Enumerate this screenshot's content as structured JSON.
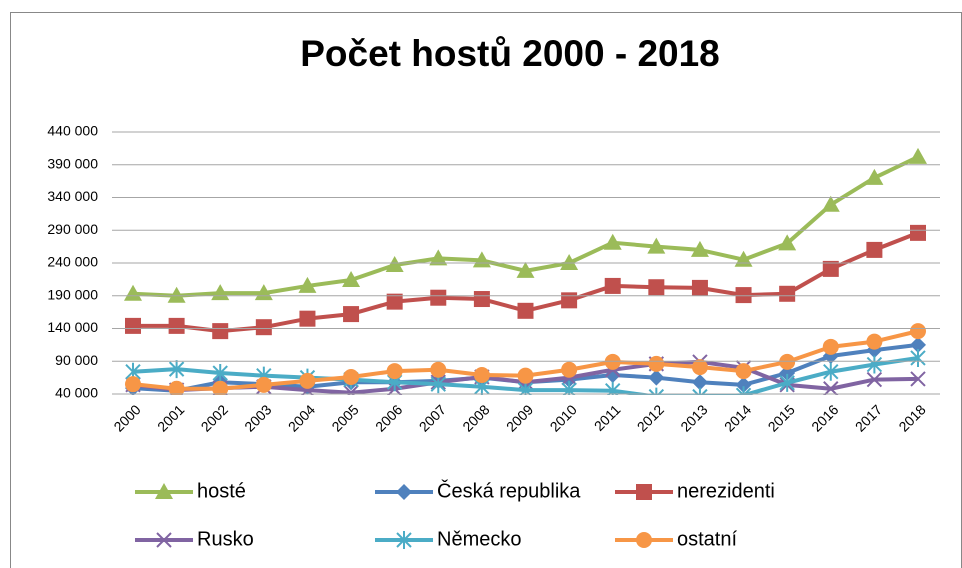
{
  "chart_data": {
    "type": "line",
    "title": "Počet hostů 2000 - 2018",
    "categories": [
      "2000",
      "2001",
      "2002",
      "2003",
      "2004",
      "2005",
      "2006",
      "2007",
      "2008",
      "2009",
      "2010",
      "2011",
      "2012",
      "2013",
      "2014",
      "2015",
      "2016",
      "2017",
      "2018"
    ],
    "ylim": [
      40000,
      440000
    ],
    "yticks": [
      {
        "value": 40000,
        "label": "40 000"
      },
      {
        "value": 90000,
        "label": "90 000"
      },
      {
        "value": 140000,
        "label": "140 000"
      },
      {
        "value": 190000,
        "label": "190 000"
      },
      {
        "value": 240000,
        "label": "240 000"
      },
      {
        "value": 290000,
        "label": "290 000"
      },
      {
        "value": 340000,
        "label": "340 000"
      },
      {
        "value": 390000,
        "label": "390 000"
      },
      {
        "value": 440000,
        "label": "440 000"
      }
    ],
    "grid": true,
    "legend": "bottom",
    "series": [
      {
        "name": "hosté",
        "color": "#9bbb59",
        "marker": "triangle",
        "values": [
          193000,
          190000,
          194000,
          194000,
          205000,
          214000,
          237000,
          247000,
          244000,
          228000,
          240000,
          271000,
          265000,
          260000,
          245000,
          270000,
          329000,
          370000,
          402000
        ]
      },
      {
        "name": "Česká republika",
        "color": "#4f81bd",
        "marker": "diamond",
        "values": [
          49000,
          45000,
          58000,
          55000,
          51000,
          58000,
          58000,
          60000,
          65000,
          58000,
          62000,
          69000,
          65000,
          58000,
          54000,
          72000,
          98000,
          107000,
          115000
        ]
      },
      {
        "name": "nerezidenti",
        "color": "#c0504d",
        "marker": "square",
        "values": [
          144000,
          144000,
          136000,
          142000,
          155000,
          162000,
          181000,
          187000,
          185000,
          167000,
          183000,
          205000,
          203000,
          202000,
          191000,
          193000,
          231000,
          260000,
          286000
        ]
      },
      {
        "name": "Rusko",
        "color": "#8064a2",
        "marker": "x",
        "values": [
          54000,
          46000,
          49000,
          51000,
          46000,
          42000,
          48000,
          58000,
          66000,
          58000,
          65000,
          77000,
          86000,
          89000,
          80000,
          54000,
          48000,
          62000,
          63000
        ]
      },
      {
        "name": "Německo",
        "color": "#4bacc6",
        "marker": "star",
        "values": [
          74000,
          78000,
          72000,
          68000,
          65000,
          62000,
          58000,
          55000,
          51000,
          46000,
          46000,
          45000,
          36000,
          36000,
          38000,
          57000,
          74000,
          85000,
          95000
        ]
      },
      {
        "name": "ostatní",
        "color": "#f79646",
        "marker": "circle",
        "values": [
          55000,
          48000,
          48000,
          54000,
          60000,
          66000,
          75000,
          77000,
          69000,
          68000,
          77000,
          89000,
          86000,
          81000,
          75000,
          89000,
          112000,
          120000,
          136000
        ]
      }
    ]
  }
}
